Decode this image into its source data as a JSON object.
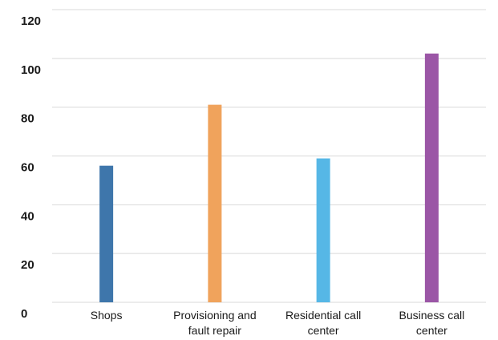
{
  "chart_data": {
    "type": "bar",
    "categories": [
      [
        "Shops"
      ],
      [
        "Provisioning and",
        "fault repair"
      ],
      [
        "Residential call",
        "center"
      ],
      [
        "Business call",
        "center"
      ]
    ],
    "values": [
      56,
      81,
      59,
      102
    ],
    "colors": [
      "#3e76ab",
      "#f0a35c",
      "#56b7e6",
      "#9b56a6"
    ],
    "title": "",
    "xlabel": "",
    "ylabel": "",
    "ylim": [
      0,
      120
    ],
    "yticks": [
      0,
      20,
      40,
      60,
      80,
      100,
      120
    ],
    "grid": true,
    "legend": "none"
  }
}
